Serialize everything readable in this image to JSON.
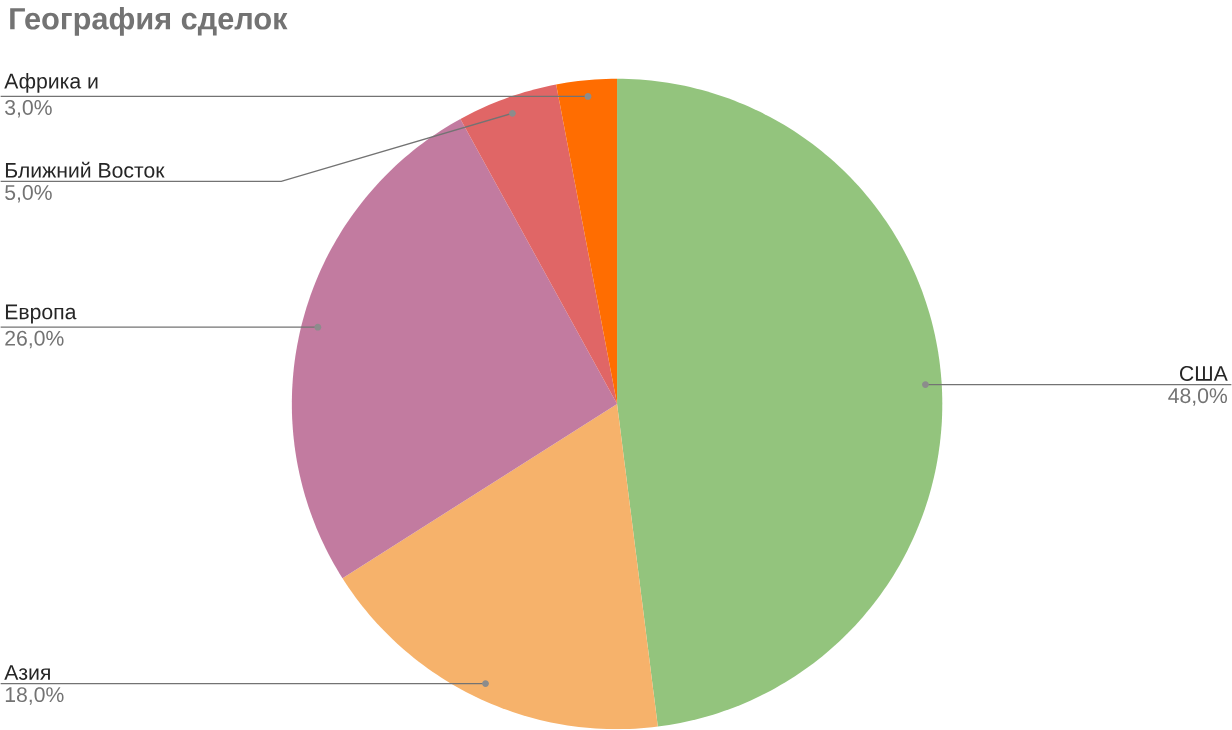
{
  "chart_data": {
    "type": "pie",
    "title": "География сделок",
    "categories": [
      "США",
      "Азия",
      "Европа",
      "Ближний Восток",
      "Африка и"
    ],
    "values": [
      48,
      18,
      26,
      5,
      3
    ],
    "value_labels": [
      "48,0%",
      "18,0%",
      "26,0%",
      "5,0%",
      "3,0%"
    ],
    "colors": [
      "#93c47d",
      "#f6b26b",
      "#c27ba0",
      "#e06666",
      "#ff6d01"
    ]
  }
}
